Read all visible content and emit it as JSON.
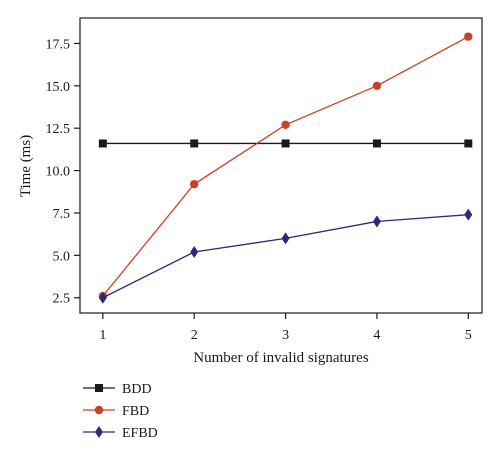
{
  "chart_data": {
    "type": "line",
    "xlabel": "Number of invalid signatures",
    "ylabel": "Time (ms)",
    "x": [
      1,
      2,
      3,
      4,
      5
    ],
    "xlim": [
      0.75,
      5.15
    ],
    "ylim": [
      1.6,
      19.0
    ],
    "yticks": [
      2.5,
      5.0,
      7.5,
      10.0,
      12.5,
      15.0,
      17.5
    ],
    "ytick_labels": [
      "2.5",
      "5.0",
      "7.5",
      "10.0",
      "12.5",
      "15.0",
      "17.5"
    ],
    "xtick_labels": [
      "1",
      "2",
      "3",
      "4",
      "5"
    ],
    "grid": false,
    "legend_position": "bottom-left, below plot",
    "series": [
      {
        "name": "BDD",
        "color": "#1a1a1a",
        "marker": "square",
        "values": [
          11.6,
          11.6,
          11.6,
          11.6,
          11.6
        ]
      },
      {
        "name": "FBD",
        "color": "#cc4125",
        "marker": "circle",
        "values": [
          2.6,
          9.2,
          12.7,
          15.0,
          17.9
        ]
      },
      {
        "name": "EFBD",
        "color": "#2b2a7a",
        "marker": "diamond",
        "values": [
          2.5,
          5.2,
          6.0,
          7.0,
          7.4
        ]
      }
    ]
  }
}
